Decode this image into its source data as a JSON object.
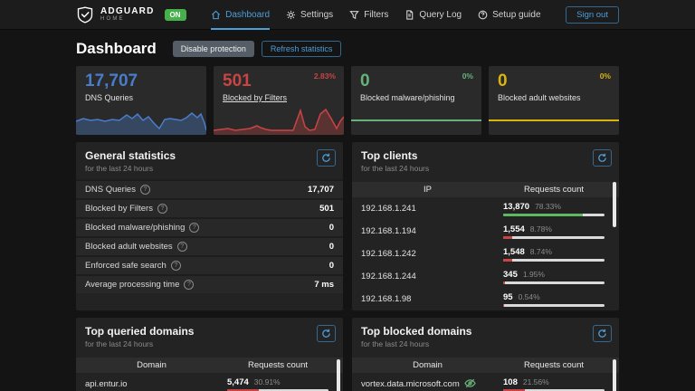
{
  "header": {
    "brand": {
      "name": "ADGUARD",
      "sub": "HOME",
      "status": "ON",
      "status_color": "#46b04a"
    },
    "nav": [
      {
        "label": "Dashboard",
        "active": true
      },
      {
        "label": "Settings",
        "active": false
      },
      {
        "label": "Filters",
        "active": false
      },
      {
        "label": "Query Log",
        "active": false
      },
      {
        "label": "Setup guide",
        "active": false
      }
    ],
    "signout": "Sign out",
    "accent_color": "#4d9dd9"
  },
  "page": {
    "title": "Dashboard",
    "disable_button": "Disable protection",
    "refresh_button": "Refresh statistics"
  },
  "cards": [
    {
      "value": "17,707",
      "label": "DNS Queries",
      "percent": "",
      "color": "#4a7dc9"
    },
    {
      "value": "501",
      "label": "Blocked by Filters",
      "percent": "2.83%",
      "color": "#c94444"
    },
    {
      "value": "0",
      "label": "Blocked malware/phishing",
      "percent": "0%",
      "color": "#67b279"
    },
    {
      "value": "0",
      "label": "Blocked adult websites",
      "percent": "0%",
      "color": "#d9b310"
    }
  ],
  "general": {
    "title": "General statistics",
    "subtitle": "for the last 24 hours",
    "rows": [
      {
        "label": "DNS Queries",
        "value": "17,707"
      },
      {
        "label": "Blocked by Filters",
        "value": "501"
      },
      {
        "label": "Blocked malware/phishing",
        "value": "0"
      },
      {
        "label": "Blocked adult websites",
        "value": "0"
      },
      {
        "label": "Enforced safe search",
        "value": "0"
      },
      {
        "label": "Average processing time",
        "value": "7 ms"
      }
    ]
  },
  "clients": {
    "title": "Top clients",
    "subtitle": "for the last 24 hours",
    "col_ip": "IP",
    "col_count": "Requests count",
    "rows": [
      {
        "ip": "192.168.1.241",
        "count": "13,870",
        "percent": "78.33%",
        "bar": 78.33,
        "color": "#5eb95e"
      },
      {
        "ip": "192.168.1.194",
        "count": "1,554",
        "percent": "8.78%",
        "bar": 8.78,
        "color": "#c94444"
      },
      {
        "ip": "192.168.1.242",
        "count": "1,548",
        "percent": "8.74%",
        "bar": 8.74,
        "color": "#c94444"
      },
      {
        "ip": "192.168.1.244",
        "count": "345",
        "percent": "1.95%",
        "bar": 1.95,
        "color": "#c94444"
      },
      {
        "ip": "192.168.1.98",
        "count": "95",
        "percent": "0.54%",
        "bar": 0.54,
        "color": "#c94444"
      }
    ]
  },
  "queried": {
    "title": "Top queried domains",
    "subtitle": "for the last 24 hours",
    "col_domain": "Domain",
    "col_count": "Requests count",
    "rows": [
      {
        "domain": "api.entur.io",
        "count": "5,474",
        "percent": "30.91%",
        "bar": 30.91,
        "color": "#c94444"
      }
    ]
  },
  "blocked": {
    "title": "Top blocked domains",
    "subtitle": "for the last 24 hours",
    "col_domain": "Domain",
    "col_count": "Requests count",
    "rows": [
      {
        "domain": "vortex.data.microsoft.com",
        "count": "108",
        "percent": "21.56%",
        "bar": 21.56,
        "color": "#c94444"
      }
    ]
  },
  "icons": {
    "help": "?"
  }
}
